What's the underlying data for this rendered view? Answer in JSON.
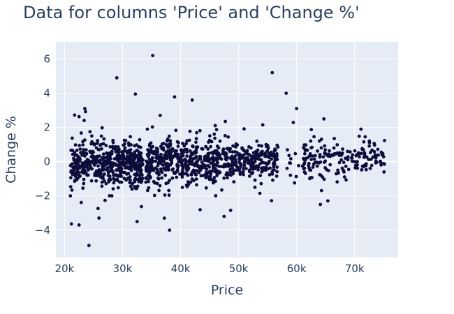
{
  "colors": {
    "plot_background": "#e5ecf6",
    "grid": "#ffffff",
    "marker": "#0d0d3b",
    "text": "#2a3f5f"
  },
  "chart_data": {
    "type": "scatter",
    "title": "Data for columns 'Price' and 'Change %'",
    "xlabel": "Price",
    "ylabel": "Change %",
    "xlim": [
      18500,
      77500
    ],
    "ylim": [
      -5.6,
      7.0
    ],
    "xticks": [
      20000,
      30000,
      40000,
      50000,
      60000,
      70000
    ],
    "xtick_labels": [
      "20k",
      "30k",
      "40k",
      "50k",
      "60k",
      "70k"
    ],
    "yticks": [
      -4,
      -2,
      0,
      2,
      4,
      6
    ],
    "ytick_labels": [
      "−4",
      "−2",
      "0",
      "2",
      "4",
      "6"
    ],
    "grid": true,
    "legend": "none",
    "marker_color": "#0d0d3b",
    "notable_points": [
      {
        "x": 35200,
        "y": 6.2
      },
      {
        "x": 55800,
        "y": 5.2
      },
      {
        "x": 29000,
        "y": 4.9
      },
      {
        "x": 58200,
        "y": 4.0
      },
      {
        "x": 32200,
        "y": 3.95
      },
      {
        "x": 60000,
        "y": 3.1
      },
      {
        "x": 23500,
        "y": 3.1
      },
      {
        "x": 42000,
        "y": 3.6
      },
      {
        "x": 24200,
        "y": -4.9
      },
      {
        "x": 38100,
        "y": -4.0
      },
      {
        "x": 22500,
        "y": -3.7
      },
      {
        "x": 37200,
        "y": -3.3
      },
      {
        "x": 47500,
        "y": -3.2
      },
      {
        "x": 32500,
        "y": -3.5
      },
      {
        "x": 21000,
        "y": -2.0
      },
      {
        "x": 64100,
        "y": -2.5
      },
      {
        "x": 64700,
        "y": 2.5
      },
      {
        "x": 71100,
        "y": 1.9
      }
    ],
    "clusters": [
      {
        "x_min": 21000,
        "x_max": 33500,
        "y_center": -0.1,
        "y_spread": 0.85,
        "count": 520
      },
      {
        "x_min": 34000,
        "x_max": 46500,
        "y_center": 0.0,
        "y_spread": 0.8,
        "count": 430
      },
      {
        "x_min": 46500,
        "x_max": 56800,
        "y_center": 0.1,
        "y_spread": 0.7,
        "count": 270
      },
      {
        "x_min": 58200,
        "x_max": 60600,
        "y_center": 0.0,
        "y_spread": 0.8,
        "count": 12
      },
      {
        "x_min": 61000,
        "x_max": 69000,
        "y_center": 0.1,
        "y_spread": 0.75,
        "count": 110
      },
      {
        "x_min": 69200,
        "x_max": 75200,
        "y_center": 0.2,
        "y_spread": 0.6,
        "count": 70
      }
    ]
  }
}
